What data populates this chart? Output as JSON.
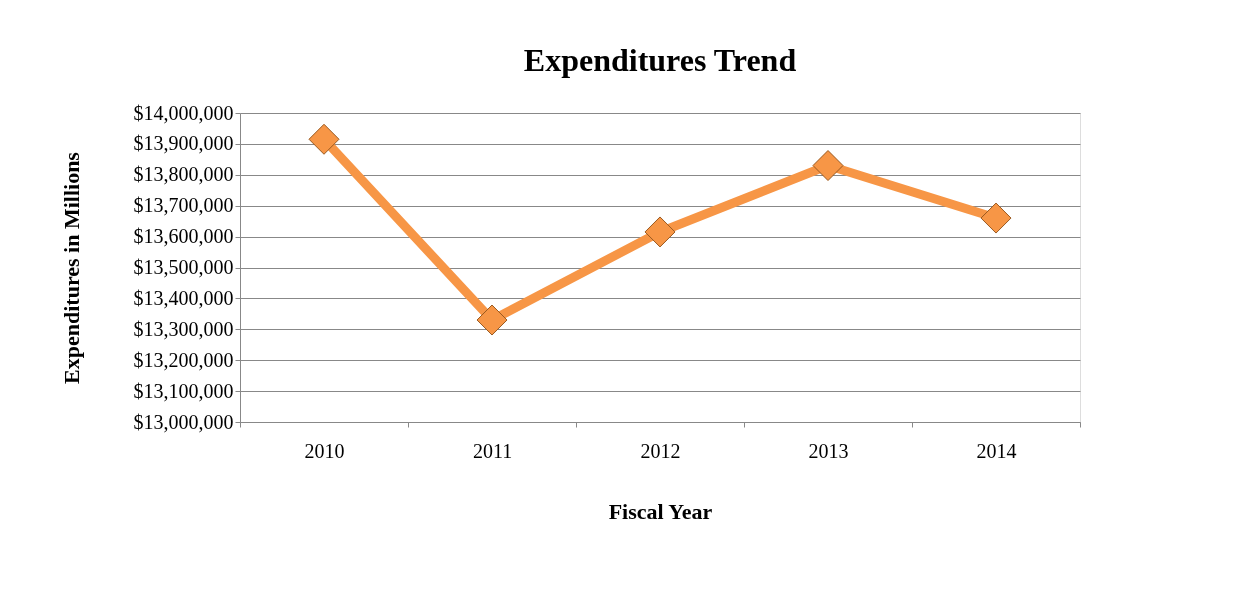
{
  "chart_data": {
    "type": "line",
    "title": "Expenditures Trend",
    "xlabel": "Fiscal Year",
    "ylabel": "Expenditures in Millions",
    "categories": [
      "2010",
      "2011",
      "2012",
      "2013",
      "2014"
    ],
    "series": [
      {
        "color": "#f79646",
        "values": [
          13915000,
          13330000,
          13615000,
          13830000,
          13660000
        ]
      }
    ],
    "ylim": [
      13000000,
      14000000
    ],
    "yticks": [
      {
        "value": 13000000,
        "label": "$13,000,000"
      },
      {
        "value": 13100000,
        "label": "$13,100,000"
      },
      {
        "value": 13200000,
        "label": "$13,200,000"
      },
      {
        "value": 13300000,
        "label": "$13,300,000"
      },
      {
        "value": 13400000,
        "label": "$13,400,000"
      },
      {
        "value": 13500000,
        "label": "$13,500,000"
      },
      {
        "value": 13600000,
        "label": "$13,600,000"
      },
      {
        "value": 13700000,
        "label": "$13,700,000"
      },
      {
        "value": 13800000,
        "label": "$13,800,000"
      },
      {
        "value": 13900000,
        "label": "$13,900,000"
      },
      {
        "value": 14000000,
        "label": "$14,000,000"
      }
    ],
    "grid": "y",
    "marker": "diamond",
    "line_style": "solid"
  }
}
